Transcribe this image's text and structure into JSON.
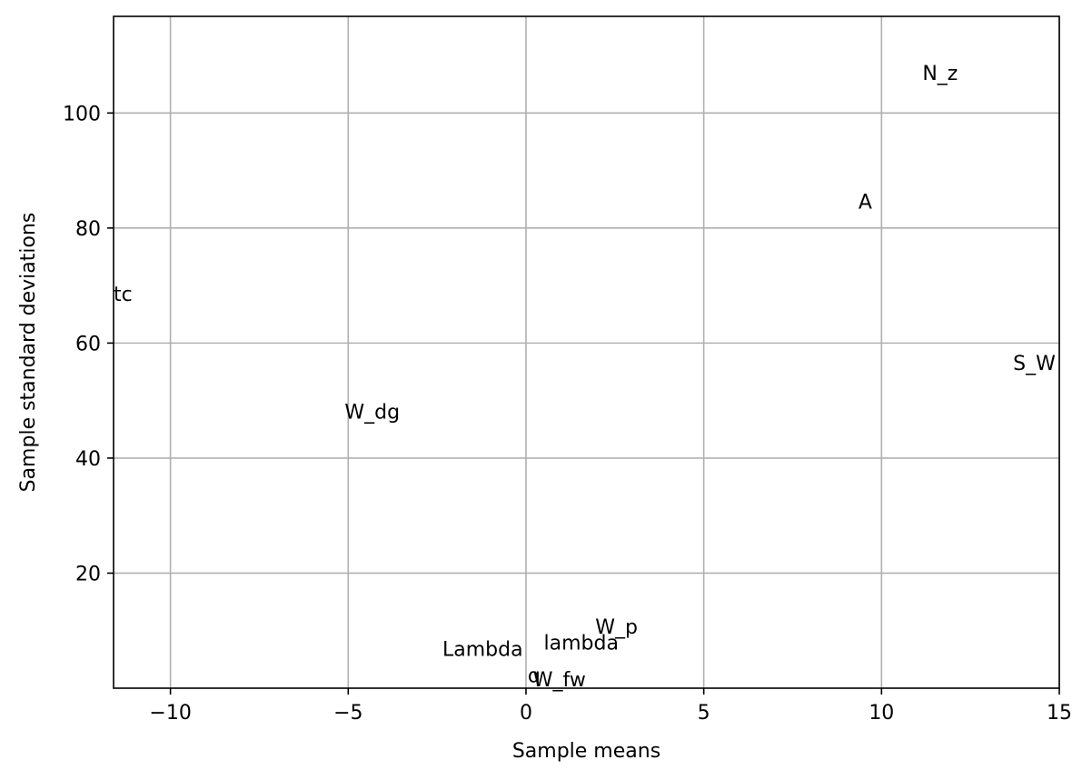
{
  "chart_data": {
    "type": "scatter",
    "title": "",
    "xlabel": "Sample means",
    "ylabel": "Sample standard deviations",
    "xlim": [
      -11.6,
      15.0
    ],
    "ylim": [
      0,
      116.8
    ],
    "x_ticks": [
      -10,
      -5,
      0,
      5,
      10,
      15
    ],
    "x_tick_labels": [
      "−10",
      "−5",
      "0",
      "5",
      "10",
      "15"
    ],
    "y_ticks": [
      20,
      40,
      60,
      80,
      100
    ],
    "y_tick_labels": [
      "20",
      "40",
      "60",
      "80",
      "100"
    ],
    "grid": true,
    "points": [
      {
        "label": "N_z",
        "x": 11.15,
        "y": 105.7
      },
      {
        "label": "A",
        "x": 9.35,
        "y": 83.4
      },
      {
        "label": "tc",
        "x": -11.6,
        "y": 67.3
      },
      {
        "label": "S_W",
        "x": 13.7,
        "y": 55.3
      },
      {
        "label": "W_dg",
        "x": -5.1,
        "y": 46.9
      },
      {
        "label": "W_p",
        "x": 1.95,
        "y": 9.5
      },
      {
        "label": "lambda",
        "x": 0.5,
        "y": 6.7
      },
      {
        "label": "Lambda",
        "x": -2.35,
        "y": 5.6
      },
      {
        "label": "q",
        "x": 0.05,
        "y": 1.0
      },
      {
        "label": "W_fw",
        "x": 0.2,
        "y": 0.3
      }
    ]
  }
}
